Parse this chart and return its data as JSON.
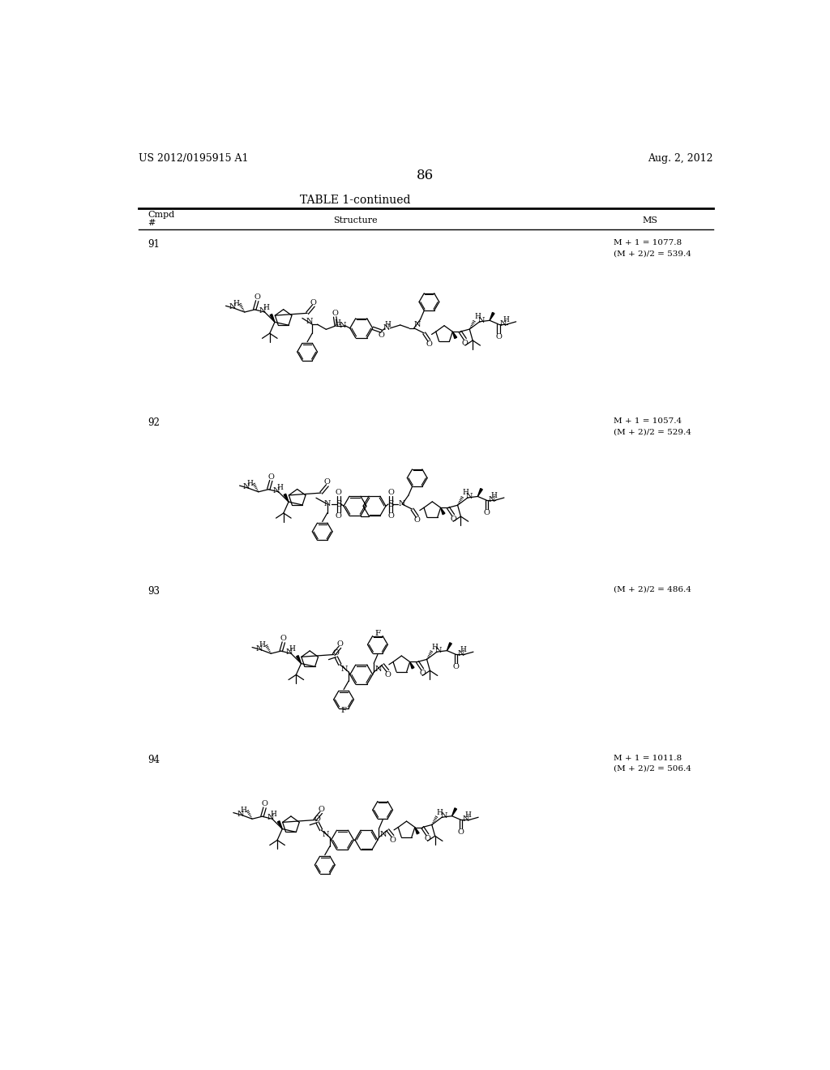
{
  "background_color": "#ffffff",
  "header_left": "US 2012/0195915 A1",
  "header_right": "Aug. 2, 2012",
  "page_number": "86",
  "table_title": "TABLE 1-continued",
  "compounds": [
    {
      "number": "91",
      "ms": "M + 1 = 1077.8\n(M + 2)/2 = 539.4"
    },
    {
      "number": "92",
      "ms": "M + 1 = 1057.4\n(M + 2)/2 = 529.4"
    },
    {
      "number": "93",
      "ms": "(M + 2)/2 = 486.4"
    },
    {
      "number": "94",
      "ms": "M + 1 = 1011.8\n(M + 2)/2 = 506.4"
    }
  ]
}
